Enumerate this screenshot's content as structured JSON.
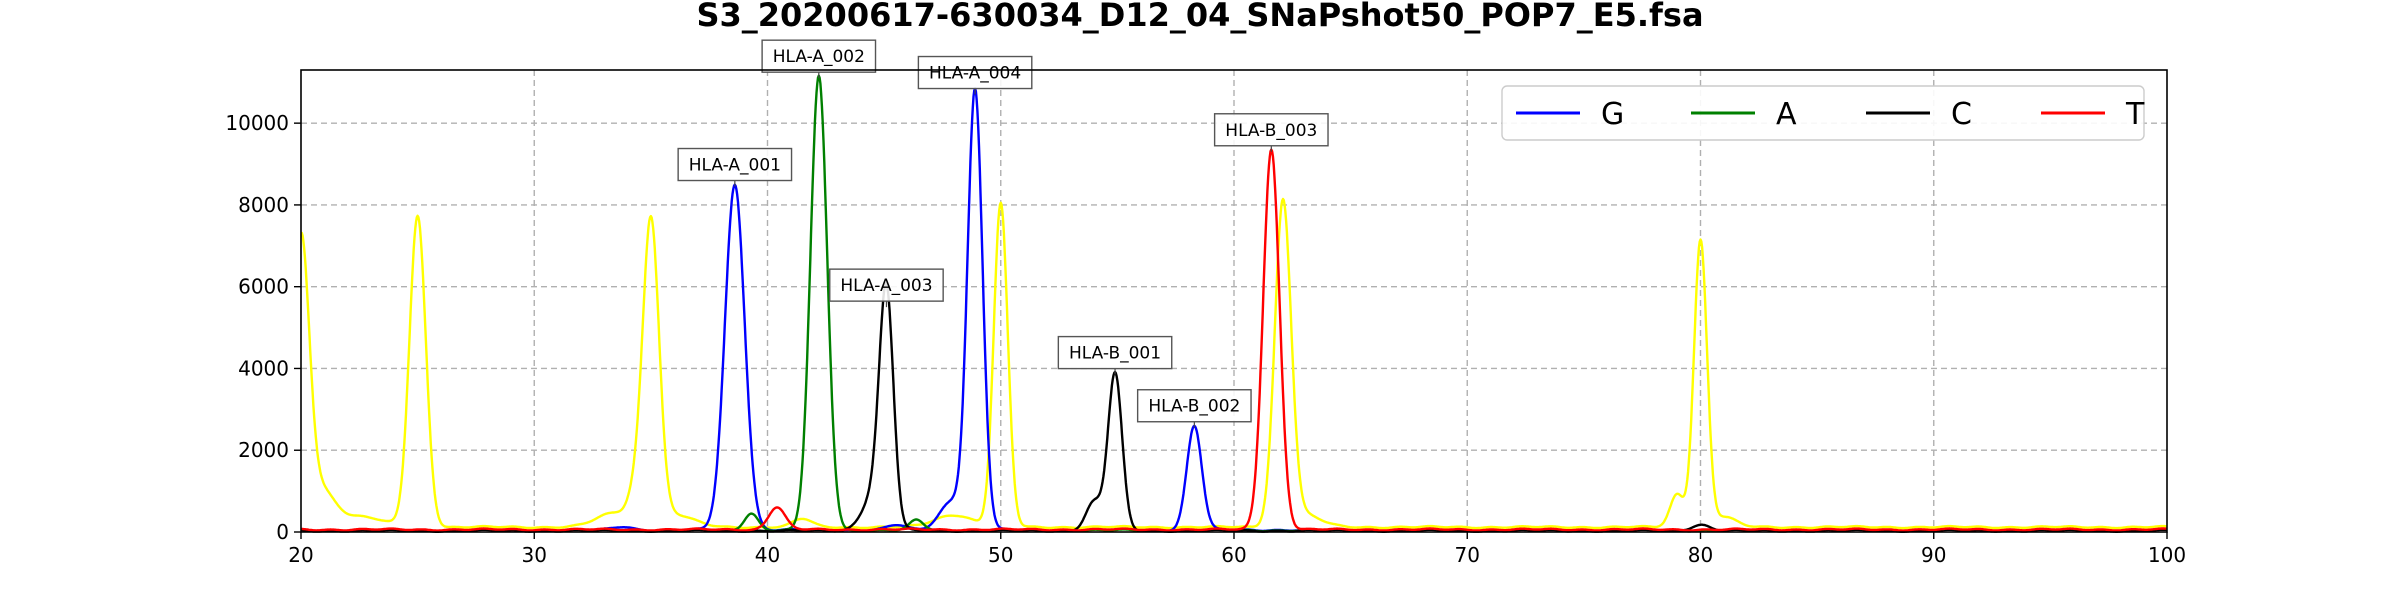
{
  "chart_data": {
    "type": "line",
    "title": "S3_20200617-630034_D12_04_SNaPshot50_POP7_E5.fsa",
    "xlabel": "",
    "ylabel": "",
    "xlim": [
      20,
      100
    ],
    "ylim": [
      0,
      11300
    ],
    "x_ticks": [
      20,
      30,
      40,
      50,
      60,
      70,
      80,
      90,
      100
    ],
    "y_ticks": [
      0,
      2000,
      4000,
      6000,
      8000,
      10000
    ],
    "grid": true,
    "legend_placement": "top-right",
    "series": [
      {
        "name": "G",
        "color": "#0000ff",
        "baseline": 50,
        "peaks": [
          {
            "x": 33.8,
            "h": 80,
            "w": 0.4
          },
          {
            "x": 38.6,
            "h": 8450,
            "w": 0.42
          },
          {
            "x": 45.5,
            "h": 120,
            "w": 0.4
          },
          {
            "x": 47.9,
            "h": 700,
            "w": 0.5
          },
          {
            "x": 48.9,
            "h": 10700,
            "w": 0.32
          },
          {
            "x": 58.3,
            "h": 2550,
            "w": 0.32
          }
        ]
      },
      {
        "name": "A",
        "color": "#008000",
        "baseline": 40,
        "peaks": [
          {
            "x": 39.3,
            "h": 420,
            "w": 0.3
          },
          {
            "x": 42.2,
            "h": 11100,
            "w": 0.36
          },
          {
            "x": 46.4,
            "h": 250,
            "w": 0.3
          }
        ]
      },
      {
        "name": "C",
        "color": "#000000",
        "baseline": 30,
        "peaks": [
          {
            "x": 44.6,
            "h": 900,
            "w": 0.5
          },
          {
            "x": 45.1,
            "h": 5500,
            "w": 0.3
          },
          {
            "x": 54.0,
            "h": 700,
            "w": 0.35
          },
          {
            "x": 54.9,
            "h": 3850,
            "w": 0.3
          },
          {
            "x": 80.0,
            "h": 150,
            "w": 0.4
          }
        ]
      },
      {
        "name": "T",
        "color": "#ff0000",
        "baseline": 60,
        "peaks": [
          {
            "x": 40.4,
            "h": 550,
            "w": 0.35
          },
          {
            "x": 61.6,
            "h": 9300,
            "w": 0.35
          }
        ]
      },
      {
        "name": "",
        "color": "#ffff00",
        "baseline": 120,
        "peaks": [
          {
            "x": 20.0,
            "h": 6800,
            "w": 0.35
          },
          {
            "x": 20.8,
            "h": 900,
            "w": 0.6
          },
          {
            "x": 22.5,
            "h": 250,
            "w": 1.0
          },
          {
            "x": 25.0,
            "h": 7600,
            "w": 0.35
          },
          {
            "x": 33.5,
            "h": 350,
            "w": 0.8
          },
          {
            "x": 34.3,
            "h": 500,
            "w": 0.3
          },
          {
            "x": 35.0,
            "h": 7400,
            "w": 0.35
          },
          {
            "x": 36.0,
            "h": 300,
            "w": 0.8
          },
          {
            "x": 41.5,
            "h": 200,
            "w": 0.4
          },
          {
            "x": 48.0,
            "h": 300,
            "w": 0.8
          },
          {
            "x": 50.0,
            "h": 7900,
            "w": 0.3
          },
          {
            "x": 62.1,
            "h": 7900,
            "w": 0.35
          },
          {
            "x": 63.0,
            "h": 300,
            "w": 0.7
          },
          {
            "x": 79.0,
            "h": 800,
            "w": 0.3
          },
          {
            "x": 80.0,
            "h": 7000,
            "w": 0.28
          },
          {
            "x": 81.0,
            "h": 250,
            "w": 0.5
          }
        ]
      }
    ],
    "annotations": [
      {
        "text": "HLA-A_001",
        "x": 38.6,
        "y": 8450
      },
      {
        "text": "HLA-A_002",
        "x": 42.2,
        "y": 11100
      },
      {
        "text": "HLA-A_003",
        "x": 45.1,
        "y": 5500
      },
      {
        "text": "HLA-A_004",
        "x": 48.9,
        "y": 10700
      },
      {
        "text": "HLA-B_001",
        "x": 54.9,
        "y": 3850
      },
      {
        "text": "HLA-B_002",
        "x": 58.3,
        "y": 2550
      },
      {
        "text": "HLA-B_003",
        "x": 61.6,
        "y": 9300
      }
    ]
  }
}
